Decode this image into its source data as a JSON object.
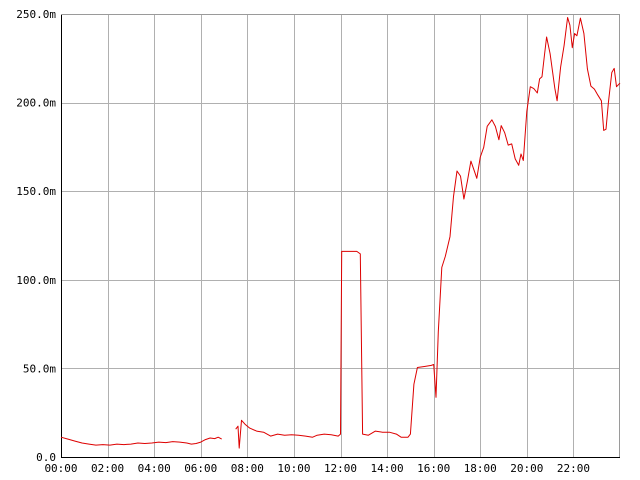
{
  "chart_data": {
    "type": "line",
    "grid": true,
    "x_unit": "hours",
    "xlim": [
      0,
      24
    ],
    "ylim": [
      0,
      0.25
    ],
    "xticks": [
      {
        "value": 0,
        "label": "00:00"
      },
      {
        "value": 2,
        "label": "02:00"
      },
      {
        "value": 4,
        "label": "04:00"
      },
      {
        "value": 6,
        "label": "06:00"
      },
      {
        "value": 8,
        "label": "08:00"
      },
      {
        "value": 10,
        "label": "10:00"
      },
      {
        "value": 12,
        "label": "12:00"
      },
      {
        "value": 14,
        "label": "14:00"
      },
      {
        "value": 16,
        "label": "16:00"
      },
      {
        "value": 18,
        "label": "18:00"
      },
      {
        "value": 20,
        "label": "20:00"
      },
      {
        "value": 22,
        "label": "22:00"
      }
    ],
    "yticks": [
      {
        "value": 0,
        "label": "0.0"
      },
      {
        "value": 0.05,
        "label": "50.0m"
      },
      {
        "value": 0.1,
        "label": "100.0m"
      },
      {
        "value": 0.15,
        "label": "150.0m"
      },
      {
        "value": 0.2,
        "label": "200.0m"
      },
      {
        "value": 0.25,
        "label": "250.0m"
      }
    ],
    "series": [
      {
        "color": "#dd0000",
        "segments": [
          [
            [
              0.0,
              0.0112
            ],
            [
              0.3,
              0.0101
            ],
            [
              0.6,
              0.009
            ],
            [
              0.9,
              0.0079
            ],
            [
              1.2,
              0.0073
            ],
            [
              1.5,
              0.0067
            ],
            [
              1.8,
              0.007
            ],
            [
              2.1,
              0.0067
            ],
            [
              2.4,
              0.0073
            ],
            [
              2.7,
              0.007
            ],
            [
              3.0,
              0.0073
            ],
            [
              3.3,
              0.0079
            ],
            [
              3.6,
              0.0076
            ],
            [
              3.9,
              0.0079
            ],
            [
              4.2,
              0.0084
            ],
            [
              4.5,
              0.0081
            ],
            [
              4.8,
              0.0087
            ],
            [
              5.1,
              0.0084
            ],
            [
              5.4,
              0.0079
            ],
            [
              5.6,
              0.0073
            ],
            [
              5.8,
              0.0076
            ],
            [
              6.0,
              0.0084
            ],
            [
              6.2,
              0.0098
            ],
            [
              6.4,
              0.0107
            ],
            [
              6.6,
              0.0104
            ],
            [
              6.75,
              0.0112
            ],
            [
              6.9,
              0.0101
            ]
          ],
          [
            [
              7.5,
              0.0157
            ],
            [
              7.6,
              0.0174
            ],
            [
              7.65,
              0.005
            ],
            [
              7.75,
              0.0207
            ],
            [
              7.9,
              0.0185
            ],
            [
              8.1,
              0.0163
            ],
            [
              8.4,
              0.0146
            ],
            [
              8.7,
              0.014
            ],
            [
              9.0,
              0.0118
            ],
            [
              9.3,
              0.0129
            ],
            [
              9.6,
              0.0123
            ],
            [
              9.9,
              0.0126
            ],
            [
              10.2,
              0.0123
            ],
            [
              10.5,
              0.0118
            ],
            [
              10.8,
              0.0112
            ],
            [
              11.0,
              0.0123
            ],
            [
              11.3,
              0.0129
            ],
            [
              11.6,
              0.0126
            ],
            [
              11.9,
              0.0118
            ],
            [
              12.0,
              0.0129
            ],
            [
              12.05,
              0.116
            ],
            [
              12.4,
              0.116
            ],
            [
              12.7,
              0.116
            ],
            [
              12.85,
              0.1146
            ],
            [
              12.95,
              0.0129
            ],
            [
              13.2,
              0.0123
            ],
            [
              13.5,
              0.0146
            ],
            [
              13.8,
              0.014
            ],
            [
              14.1,
              0.014
            ],
            [
              14.4,
              0.0129
            ],
            [
              14.6,
              0.0112
            ],
            [
              14.9,
              0.0112
            ],
            [
              15.0,
              0.0129
            ],
            [
              15.15,
              0.041
            ],
            [
              15.3,
              0.0505
            ],
            [
              15.6,
              0.0511
            ],
            [
              15.9,
              0.0517
            ],
            [
              16.0,
              0.0522
            ],
            [
              16.1,
              0.0337
            ],
            [
              16.2,
              0.0707
            ],
            [
              16.35,
              0.107
            ],
            [
              16.5,
              0.1132
            ],
            [
              16.7,
              0.1244
            ],
            [
              16.85,
              0.147
            ],
            [
              17.0,
              0.1614
            ],
            [
              17.15,
              0.1585
            ],
            [
              17.3,
              0.1456
            ],
            [
              17.45,
              0.1557
            ],
            [
              17.6,
              0.167
            ],
            [
              17.75,
              0.1613
            ],
            [
              17.85,
              0.1573
            ],
            [
              18.0,
              0.1693
            ],
            [
              18.15,
              0.1747
            ],
            [
              18.3,
              0.1866
            ],
            [
              18.5,
              0.1903
            ],
            [
              18.65,
              0.1865
            ],
            [
              18.8,
              0.179
            ],
            [
              18.9,
              0.187
            ],
            [
              19.05,
              0.183
            ],
            [
              19.2,
              0.176
            ],
            [
              19.35,
              0.1767
            ],
            [
              19.5,
              0.1682
            ],
            [
              19.65,
              0.1646
            ],
            [
              19.75,
              0.171
            ],
            [
              19.85,
              0.1673
            ],
            [
              20.0,
              0.195
            ],
            [
              20.15,
              0.209
            ],
            [
              20.3,
              0.2079
            ],
            [
              20.45,
              0.2054
            ],
            [
              20.55,
              0.2134
            ],
            [
              20.65,
              0.2146
            ],
            [
              20.75,
              0.226
            ],
            [
              20.85,
              0.237
            ],
            [
              21.0,
              0.2276
            ],
            [
              21.2,
              0.2082
            ],
            [
              21.3,
              0.201
            ],
            [
              21.45,
              0.22
            ],
            [
              21.6,
              0.2323
            ],
            [
              21.75,
              0.248
            ],
            [
              21.85,
              0.2437
            ],
            [
              21.95,
              0.231
            ],
            [
              22.05,
              0.239
            ],
            [
              22.15,
              0.2377
            ],
            [
              22.3,
              0.2477
            ],
            [
              22.45,
              0.239
            ],
            [
              22.6,
              0.219
            ],
            [
              22.75,
              0.2093
            ],
            [
              22.9,
              0.2076
            ],
            [
              23.05,
              0.2042
            ],
            [
              23.2,
              0.201
            ],
            [
              23.3,
              0.1843
            ],
            [
              23.4,
              0.185
            ],
            [
              23.5,
              0.2
            ],
            [
              23.65,
              0.217
            ],
            [
              23.75,
              0.2193
            ],
            [
              23.85,
              0.209
            ],
            [
              24.0,
              0.211
            ]
          ]
        ]
      }
    ]
  }
}
